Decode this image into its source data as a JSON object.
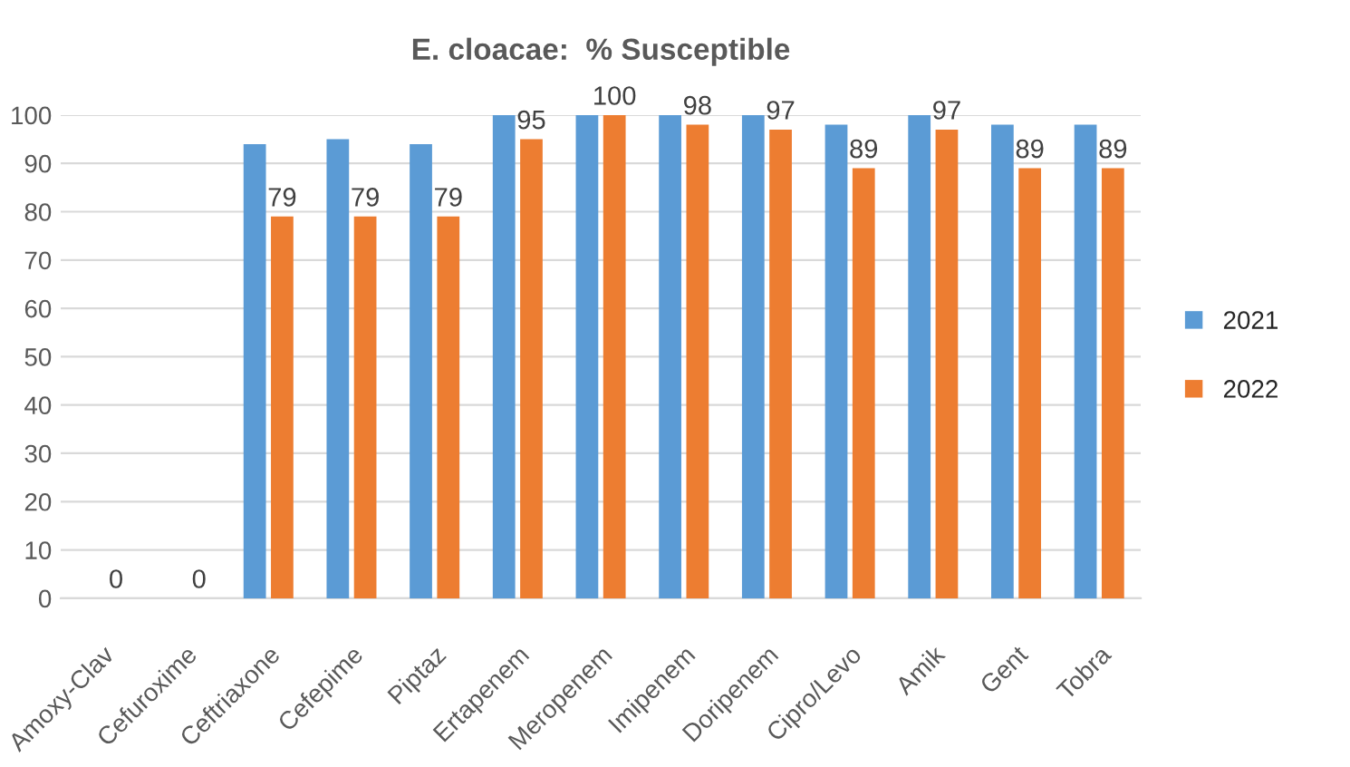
{
  "chart_data": {
    "type": "bar",
    "title": "E. cloacae:  % Susceptible",
    "categories": [
      "Amoxy-Clav",
      "Cefuroxime",
      "Ceftriaxone",
      "Cefepime",
      "Piptaz",
      "Ertapenem",
      "Meropenem",
      "Imipenem",
      "Doripenem",
      "Cipro/Levo",
      "Amik",
      "Gent",
      "Tobra"
    ],
    "series": [
      {
        "name": "2021",
        "color": "#5b9bd5",
        "values": [
          null,
          null,
          94,
          95,
          94,
          100,
          100,
          100,
          100,
          98,
          100,
          98,
          98
        ]
      },
      {
        "name": "2022",
        "color": "#ed7d31",
        "values": [
          0,
          0,
          79,
          79,
          79,
          95,
          100,
          98,
          97,
          89,
          97,
          89,
          89
        ],
        "value_labels": [
          "0",
          "0",
          "79",
          "79",
          "79",
          "95",
          "100",
          "98",
          "97",
          "89",
          "97",
          "89",
          "89"
        ]
      }
    ],
    "ylim": [
      0,
      100
    ],
    "yticks": [
      0,
      10,
      20,
      30,
      40,
      50,
      60,
      70,
      80,
      90,
      100
    ],
    "grid": "y",
    "legend": "right"
  }
}
